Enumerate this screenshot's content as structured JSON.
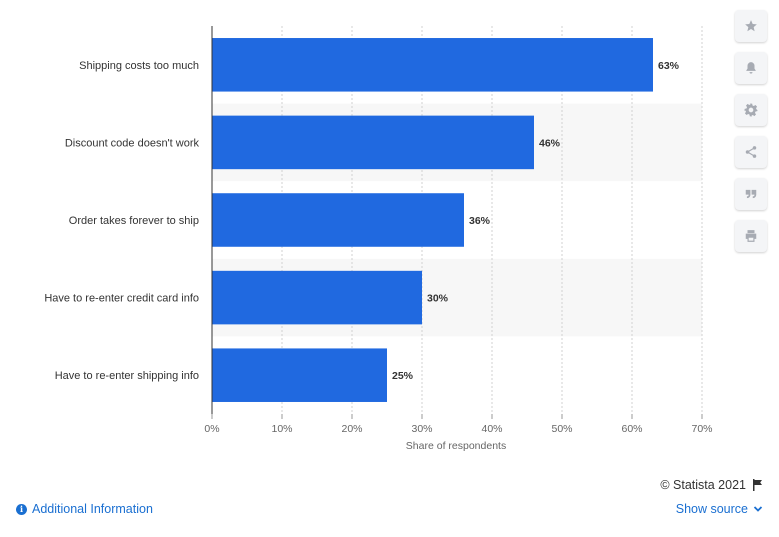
{
  "chart_data": {
    "type": "bar",
    "orientation": "horizontal",
    "categories": [
      "Shipping costs too much",
      "Discount code doesn't work",
      "Order takes forever to ship",
      "Have to re-enter credit card info",
      "Have to re-enter shipping info"
    ],
    "values": [
      63,
      46,
      36,
      30,
      25
    ],
    "value_labels": [
      "63%",
      "46%",
      "36%",
      "30%",
      "25%"
    ],
    "xlabel": "Share of respondents",
    "xlim": [
      0,
      70
    ],
    "x_ticks": [
      0,
      10,
      20,
      30,
      40,
      50,
      60,
      70
    ],
    "x_tick_labels": [
      "0%",
      "10%",
      "20%",
      "30%",
      "40%",
      "50%",
      "60%",
      "70%"
    ],
    "grid": "vertical dashed",
    "bar_color": "#2069e0",
    "band_color": "#f7f7f7"
  },
  "side_buttons": [
    {
      "icon": "star-icon"
    },
    {
      "icon": "bell-icon"
    },
    {
      "icon": "gear-icon"
    },
    {
      "icon": "share-icon"
    },
    {
      "icon": "quote-icon"
    },
    {
      "icon": "print-icon"
    }
  ],
  "footer": {
    "credit": "© Statista 2021",
    "additional_info": "Additional Information",
    "show_source": "Show source"
  },
  "colors": {
    "accent": "#1a6fd1",
    "bar": "#2069e0",
    "icon": "#a7abb3"
  }
}
